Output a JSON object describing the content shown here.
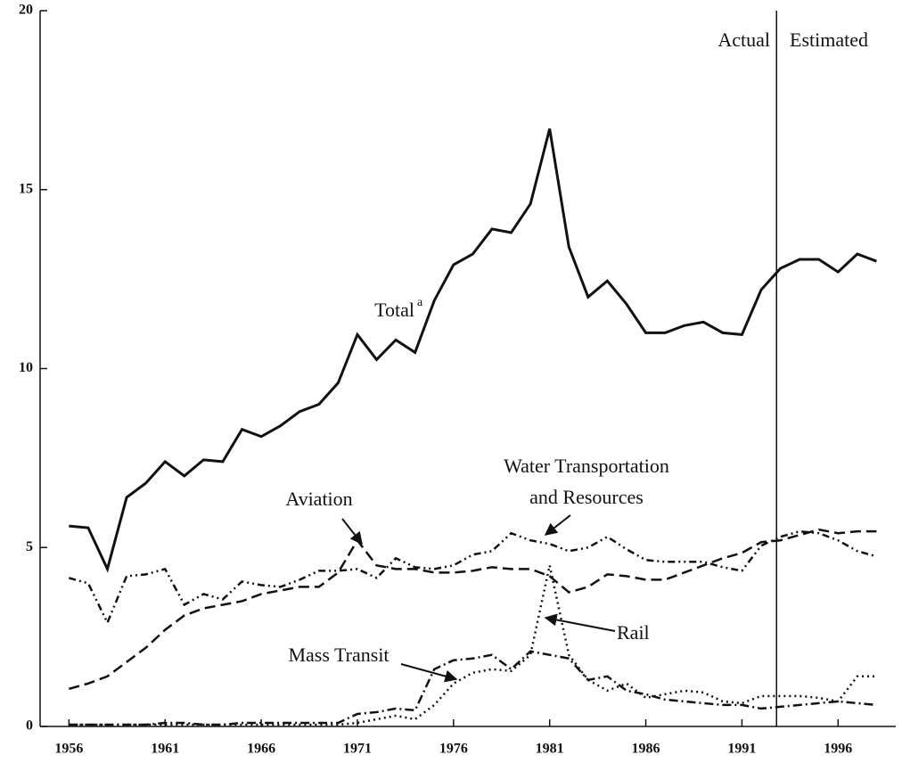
{
  "chart_data": {
    "type": "line",
    "x": [
      1956,
      1957,
      1958,
      1959,
      1960,
      1961,
      1962,
      1963,
      1964,
      1965,
      1966,
      1967,
      1968,
      1969,
      1970,
      1971,
      1972,
      1973,
      1974,
      1975,
      1976,
      1977,
      1978,
      1979,
      1980,
      1981,
      1982,
      1983,
      1984,
      1985,
      1986,
      1987,
      1988,
      1989,
      1990,
      1991,
      1992,
      1993,
      1994,
      1995,
      1996,
      1997,
      1998
    ],
    "xlim": [
      1954.5,
      1999
    ],
    "xticks": [
      1956,
      1961,
      1966,
      1971,
      1976,
      1981,
      1986,
      1991,
      1996
    ],
    "ylim": [
      0,
      20
    ],
    "yticks": [
      0,
      5,
      10,
      15,
      20
    ],
    "divider_x": 1992.8,
    "divider_labels": [
      "Actual",
      "Estimated"
    ],
    "series": [
      {
        "name": "Total",
        "note": "a",
        "color": "#111111",
        "style": "solid",
        "values": [
          5.6,
          5.55,
          4.4,
          6.4,
          6.8,
          7.4,
          7.0,
          7.45,
          7.4,
          8.3,
          8.1,
          8.4,
          8.8,
          9.0,
          9.6,
          10.95,
          10.25,
          10.8,
          10.45,
          11.9,
          12.9,
          13.2,
          13.9,
          13.8,
          14.6,
          16.7,
          13.4,
          12.0,
          12.45,
          11.8,
          11.0,
          11.0,
          11.2,
          11.3,
          11.0,
          10.95,
          12.2,
          12.8,
          13.05,
          13.05,
          12.7,
          13.2,
          13.0
        ]
      },
      {
        "name_lines": [
          "Water Transportation",
          "and Resources"
        ],
        "color": "#111111",
        "style": "dashdotdot",
        "values": [
          4.15,
          4.0,
          2.9,
          4.2,
          4.25,
          4.4,
          3.4,
          3.7,
          3.55,
          4.05,
          3.95,
          3.9,
          4.1,
          4.35,
          4.35,
          4.4,
          4.15,
          4.7,
          4.45,
          4.4,
          4.5,
          4.8,
          4.9,
          5.4,
          5.2,
          5.1,
          4.9,
          5.0,
          5.3,
          4.95,
          4.65,
          4.6,
          4.6,
          4.6,
          4.45,
          4.35,
          5.05,
          5.3,
          5.45,
          5.4,
          5.2,
          4.9,
          4.75
        ]
      },
      {
        "name": "Aviation",
        "color": "#111111",
        "style": "dashed",
        "values": [
          1.05,
          1.2,
          1.4,
          1.8,
          2.2,
          2.7,
          3.1,
          3.3,
          3.4,
          3.5,
          3.7,
          3.8,
          3.9,
          3.9,
          4.3,
          5.2,
          4.5,
          4.4,
          4.4,
          4.3,
          4.3,
          4.35,
          4.45,
          4.4,
          4.4,
          4.2,
          3.75,
          3.9,
          4.25,
          4.2,
          4.1,
          4.1,
          4.3,
          4.5,
          4.7,
          4.85,
          5.15,
          5.2,
          5.35,
          5.5,
          5.4,
          5.45,
          5.45
        ]
      },
      {
        "name": "Rail",
        "color": "#111111",
        "style": "dotted",
        "values": [
          0.05,
          0.05,
          0.05,
          0.05,
          0.05,
          0.05,
          0.05,
          0.05,
          0.05,
          0.05,
          0.05,
          0.05,
          0.05,
          0.05,
          0.05,
          0.1,
          0.2,
          0.3,
          0.2,
          0.6,
          1.2,
          1.5,
          1.6,
          1.55,
          2.0,
          4.5,
          2.0,
          1.3,
          1.0,
          1.2,
          0.8,
          0.9,
          1.0,
          0.95,
          0.7,
          0.65,
          0.85,
          0.85,
          0.85,
          0.8,
          0.7,
          1.4,
          1.4
        ]
      },
      {
        "name": "Mass Transit",
        "color": "#111111",
        "style": "dashdot",
        "values": [
          0.05,
          0.05,
          0.05,
          0.05,
          0.05,
          0.1,
          0.1,
          0.05,
          0.05,
          0.1,
          0.1,
          0.1,
          0.1,
          0.1,
          0.1,
          0.35,
          0.4,
          0.5,
          0.45,
          1.6,
          1.85,
          1.9,
          2.0,
          1.6,
          2.1,
          2.0,
          1.9,
          1.3,
          1.4,
          1.0,
          0.9,
          0.75,
          0.7,
          0.65,
          0.6,
          0.6,
          0.5,
          0.55,
          0.6,
          0.65,
          0.7,
          0.65,
          0.6
        ]
      }
    ]
  }
}
